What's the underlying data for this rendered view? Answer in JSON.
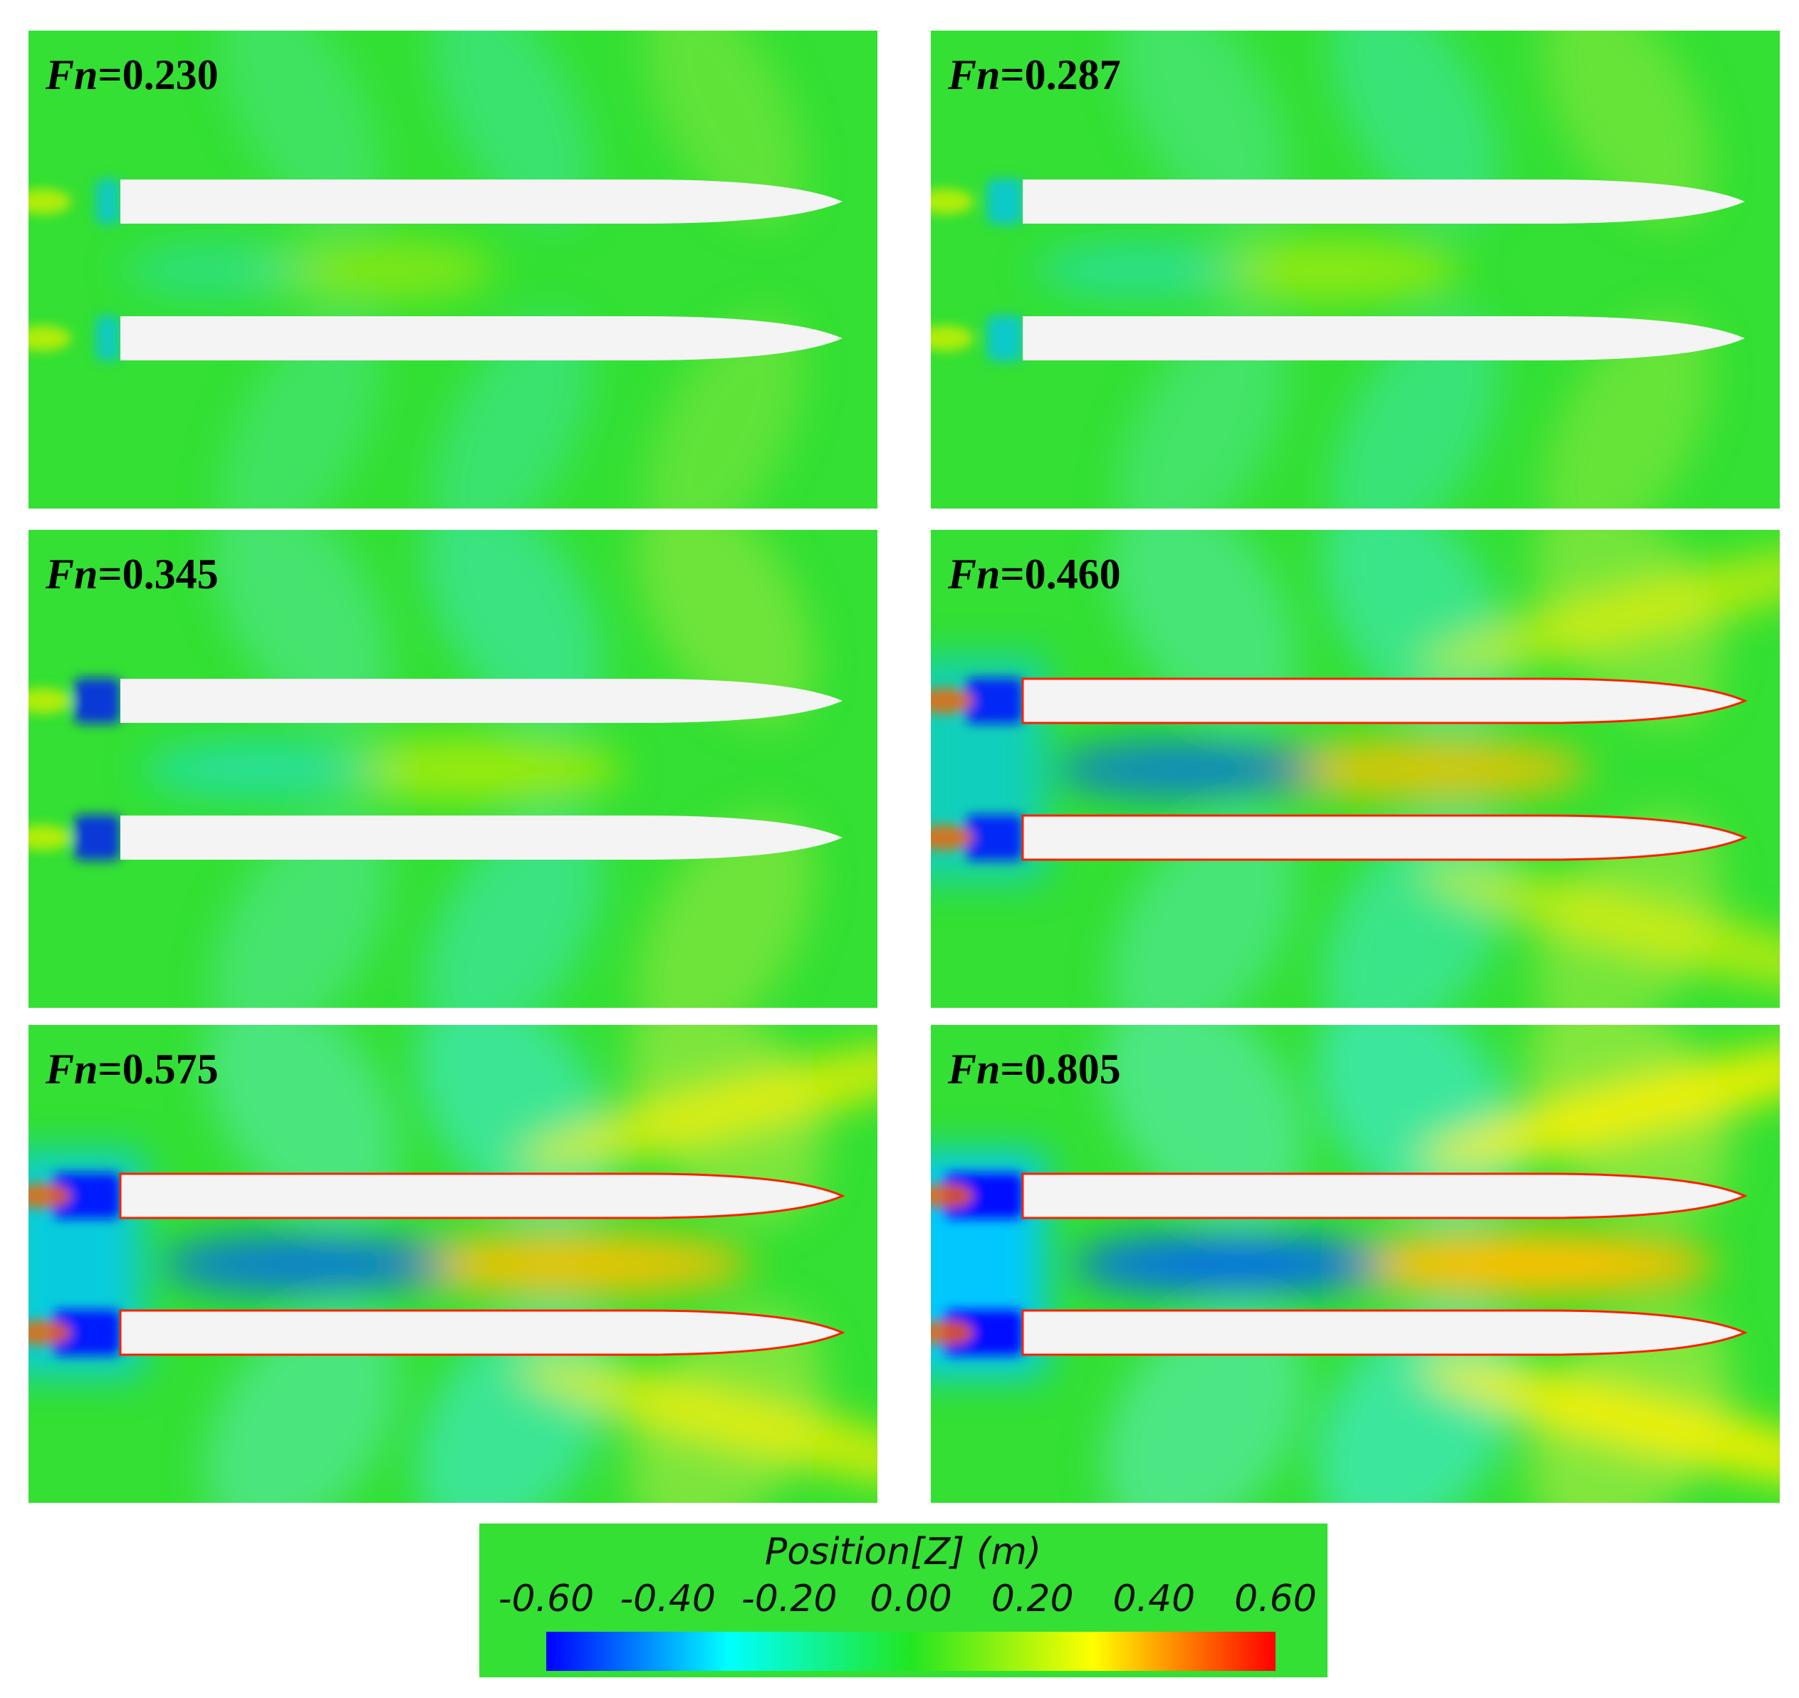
{
  "panels": [
    {
      "symbol": "Fn",
      "value": "=0.230"
    },
    {
      "symbol": "Fn",
      "value": "=0.287"
    },
    {
      "symbol": "Fn",
      "value": "=0.345"
    },
    {
      "symbol": "Fn",
      "value": "=0.460"
    },
    {
      "symbol": "Fn",
      "value": "=0.575"
    },
    {
      "symbol": "Fn",
      "value": "=0.805"
    }
  ],
  "colorbar": {
    "title": "Position[Z] (m)",
    "range": [
      -0.6,
      0.6
    ],
    "ticks": [
      {
        "value": -0.6,
        "label": "-0.60"
      },
      {
        "value": -0.4,
        "label": "-0.40"
      },
      {
        "value": -0.2,
        "label": "-0.20"
      },
      {
        "value": 0,
        "label": "0.00"
      },
      {
        "value": 0.2,
        "label": "0.20"
      },
      {
        "value": 0.4,
        "label": "0.40"
      },
      {
        "value": 0.6,
        "label": "0.60"
      }
    ],
    "colors": [
      "#0000ff",
      "#00ffff",
      "#22e622",
      "#ffff00",
      "#ff0000"
    ]
  }
}
